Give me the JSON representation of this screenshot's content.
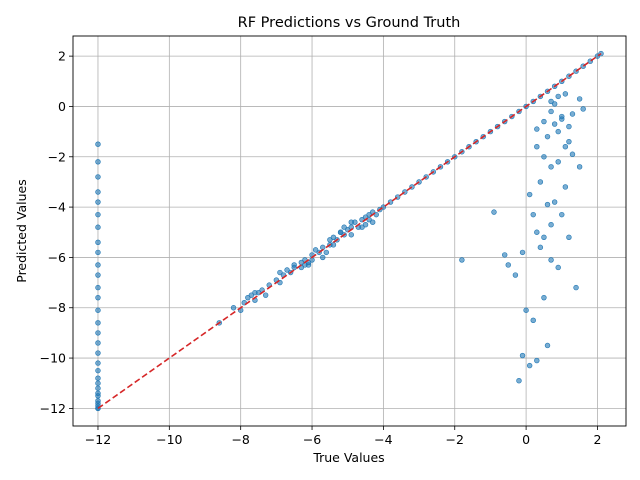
{
  "chart_data": {
    "type": "scatter",
    "title": "RF Predictions vs Ground Truth",
    "xlabel": "True Values",
    "ylabel": "Predicted Values",
    "xlim": [
      -12.7,
      2.8
    ],
    "ylim": [
      -12.7,
      2.8
    ],
    "x_ticks": [
      -12,
      -10,
      -8,
      -6,
      -4,
      -2,
      0,
      2
    ],
    "y_ticks": [
      -12,
      -10,
      -8,
      -6,
      -4,
      -2,
      0,
      2
    ],
    "grid": true,
    "point_color": "#1f77b4",
    "reference_line": {
      "style": "dashed",
      "color": "#d62728",
      "from": [
        -12,
        -12
      ],
      "to": [
        2.1,
        2.1
      ]
    },
    "series": [
      {
        "x": [
          -12,
          -12,
          -12,
          -12,
          -12,
          -12,
          -12,
          -12,
          -12,
          -12,
          -12,
          -12,
          -12,
          -12,
          -12,
          -12,
          -12,
          -12,
          -12,
          -12,
          -12,
          -12,
          -12,
          -12,
          -12,
          -12,
          -12,
          -12,
          -12,
          -12,
          -8.6,
          -8.2,
          -8.0,
          -7.9,
          -7.8,
          -7.7,
          -7.6,
          -7.5,
          -7.4,
          -7.2,
          -7.0,
          -6.9,
          -6.8,
          -6.7,
          -6.6,
          -6.5,
          -6.3,
          -6.3,
          -6.2,
          -6.1,
          -6.0,
          -6.0,
          -5.8,
          -5.7,
          -5.6,
          -5.5,
          -5.4,
          -5.4,
          -5.3,
          -5.2,
          -5.1,
          -5.0,
          -4.9,
          -4.8,
          -4.7,
          -4.6,
          -4.5,
          -4.4,
          -4.3,
          -4.2,
          -4.1,
          -4.0,
          -3.8,
          -3.6,
          -3.4,
          -3.2,
          -3.0,
          -2.8,
          -2.6,
          -2.4,
          -2.2,
          -2.0,
          -1.8,
          -1.6,
          -1.4,
          -1.2,
          -1.0,
          -0.8,
          -0.6,
          -0.4,
          -0.2,
          0.0,
          0.2,
          0.4,
          0.6,
          0.8,
          1.0,
          1.2,
          1.4,
          1.6,
          1.8,
          2.0,
          2.1,
          -1.8,
          -0.9,
          -0.6,
          -0.5,
          -0.3,
          -0.2,
          -0.1,
          -0.1,
          0.0,
          0.1,
          0.1,
          0.2,
          0.2,
          0.3,
          0.3,
          0.3,
          0.4,
          0.4,
          0.5,
          0.5,
          0.5,
          0.6,
          0.6,
          0.6,
          0.7,
          0.7,
          0.7,
          0.8,
          0.8,
          0.9,
          0.9,
          1.0,
          1.0,
          1.1,
          1.1,
          1.2,
          1.2,
          1.3,
          1.4,
          1.5,
          1.5,
          1.6,
          0.3,
          0.5,
          0.7,
          0.9,
          1.1,
          1.3,
          0.8,
          1.0,
          1.2,
          0.9,
          0.7,
          -5.5,
          -5.2,
          -4.9,
          -4.6,
          -6.2,
          -5.9,
          -5.7,
          -4.4,
          -4.3,
          -4.9,
          -5.1,
          -4.5,
          -7.6,
          -7.3,
          -6.9,
          -6.5,
          -6.1
        ],
        "y": [
          -1.5,
          -2.2,
          -2.8,
          -3.4,
          -3.8,
          -4.3,
          -4.8,
          -5.4,
          -5.8,
          -6.3,
          -6.7,
          -7.2,
          -7.6,
          -8.1,
          -8.6,
          -9.0,
          -9.4,
          -9.8,
          -10.2,
          -10.5,
          -10.8,
          -11.0,
          -11.2,
          -11.4,
          -11.5,
          -11.7,
          -11.8,
          -11.9,
          -12.0,
          -12.0,
          -8.6,
          -8.0,
          -8.1,
          -7.8,
          -7.6,
          -7.5,
          -7.7,
          -7.4,
          -7.3,
          -7.1,
          -6.9,
          -7.0,
          -6.7,
          -6.5,
          -6.6,
          -6.4,
          -6.4,
          -6.2,
          -6.1,
          -6.3,
          -5.9,
          -6.1,
          -5.8,
          -5.6,
          -5.8,
          -5.5,
          -5.2,
          -5.5,
          -5.3,
          -5.0,
          -5.1,
          -4.9,
          -4.8,
          -4.6,
          -4.8,
          -4.5,
          -4.4,
          -4.5,
          -4.2,
          -4.3,
          -4.1,
          -4.0,
          -3.8,
          -3.6,
          -3.4,
          -3.2,
          -3.0,
          -2.8,
          -2.6,
          -2.4,
          -2.2,
          -2.0,
          -1.8,
          -1.6,
          -1.4,
          -1.2,
          -1.0,
          -0.8,
          -0.6,
          -0.4,
          -0.2,
          0.0,
          0.2,
          0.4,
          0.6,
          0.8,
          1.0,
          1.2,
          1.4,
          1.6,
          1.8,
          2.0,
          2.1,
          -6.1,
          -4.2,
          -5.9,
          -6.3,
          -6.7,
          -10.9,
          -5.8,
          -9.9,
          -8.1,
          -3.5,
          -10.3,
          -4.3,
          -8.5,
          -5.0,
          -1.6,
          -10.1,
          -5.6,
          -3.0,
          -7.6,
          -2.0,
          -5.2,
          -9.5,
          -3.9,
          -1.2,
          -6.1,
          -2.4,
          -4.7,
          -0.7,
          -3.8,
          -6.4,
          -2.2,
          -0.4,
          -4.3,
          -1.6,
          -3.2,
          -0.8,
          -5.2,
          -1.9,
          -7.2,
          -2.4,
          0.3,
          -0.1,
          -0.9,
          -0.6,
          -0.2,
          -1.0,
          0.5,
          -0.3,
          0.1,
          -0.5,
          -1.4,
          0.4,
          0.2,
          -5.3,
          -5.0,
          -4.6,
          -4.8,
          -6.3,
          -5.7,
          -6.0,
          -4.3,
          -4.6,
          -5.1,
          -4.8,
          -4.7,
          -7.4,
          -7.5,
          -6.6,
          -6.3,
          -6.2
        ]
      }
    ]
  }
}
